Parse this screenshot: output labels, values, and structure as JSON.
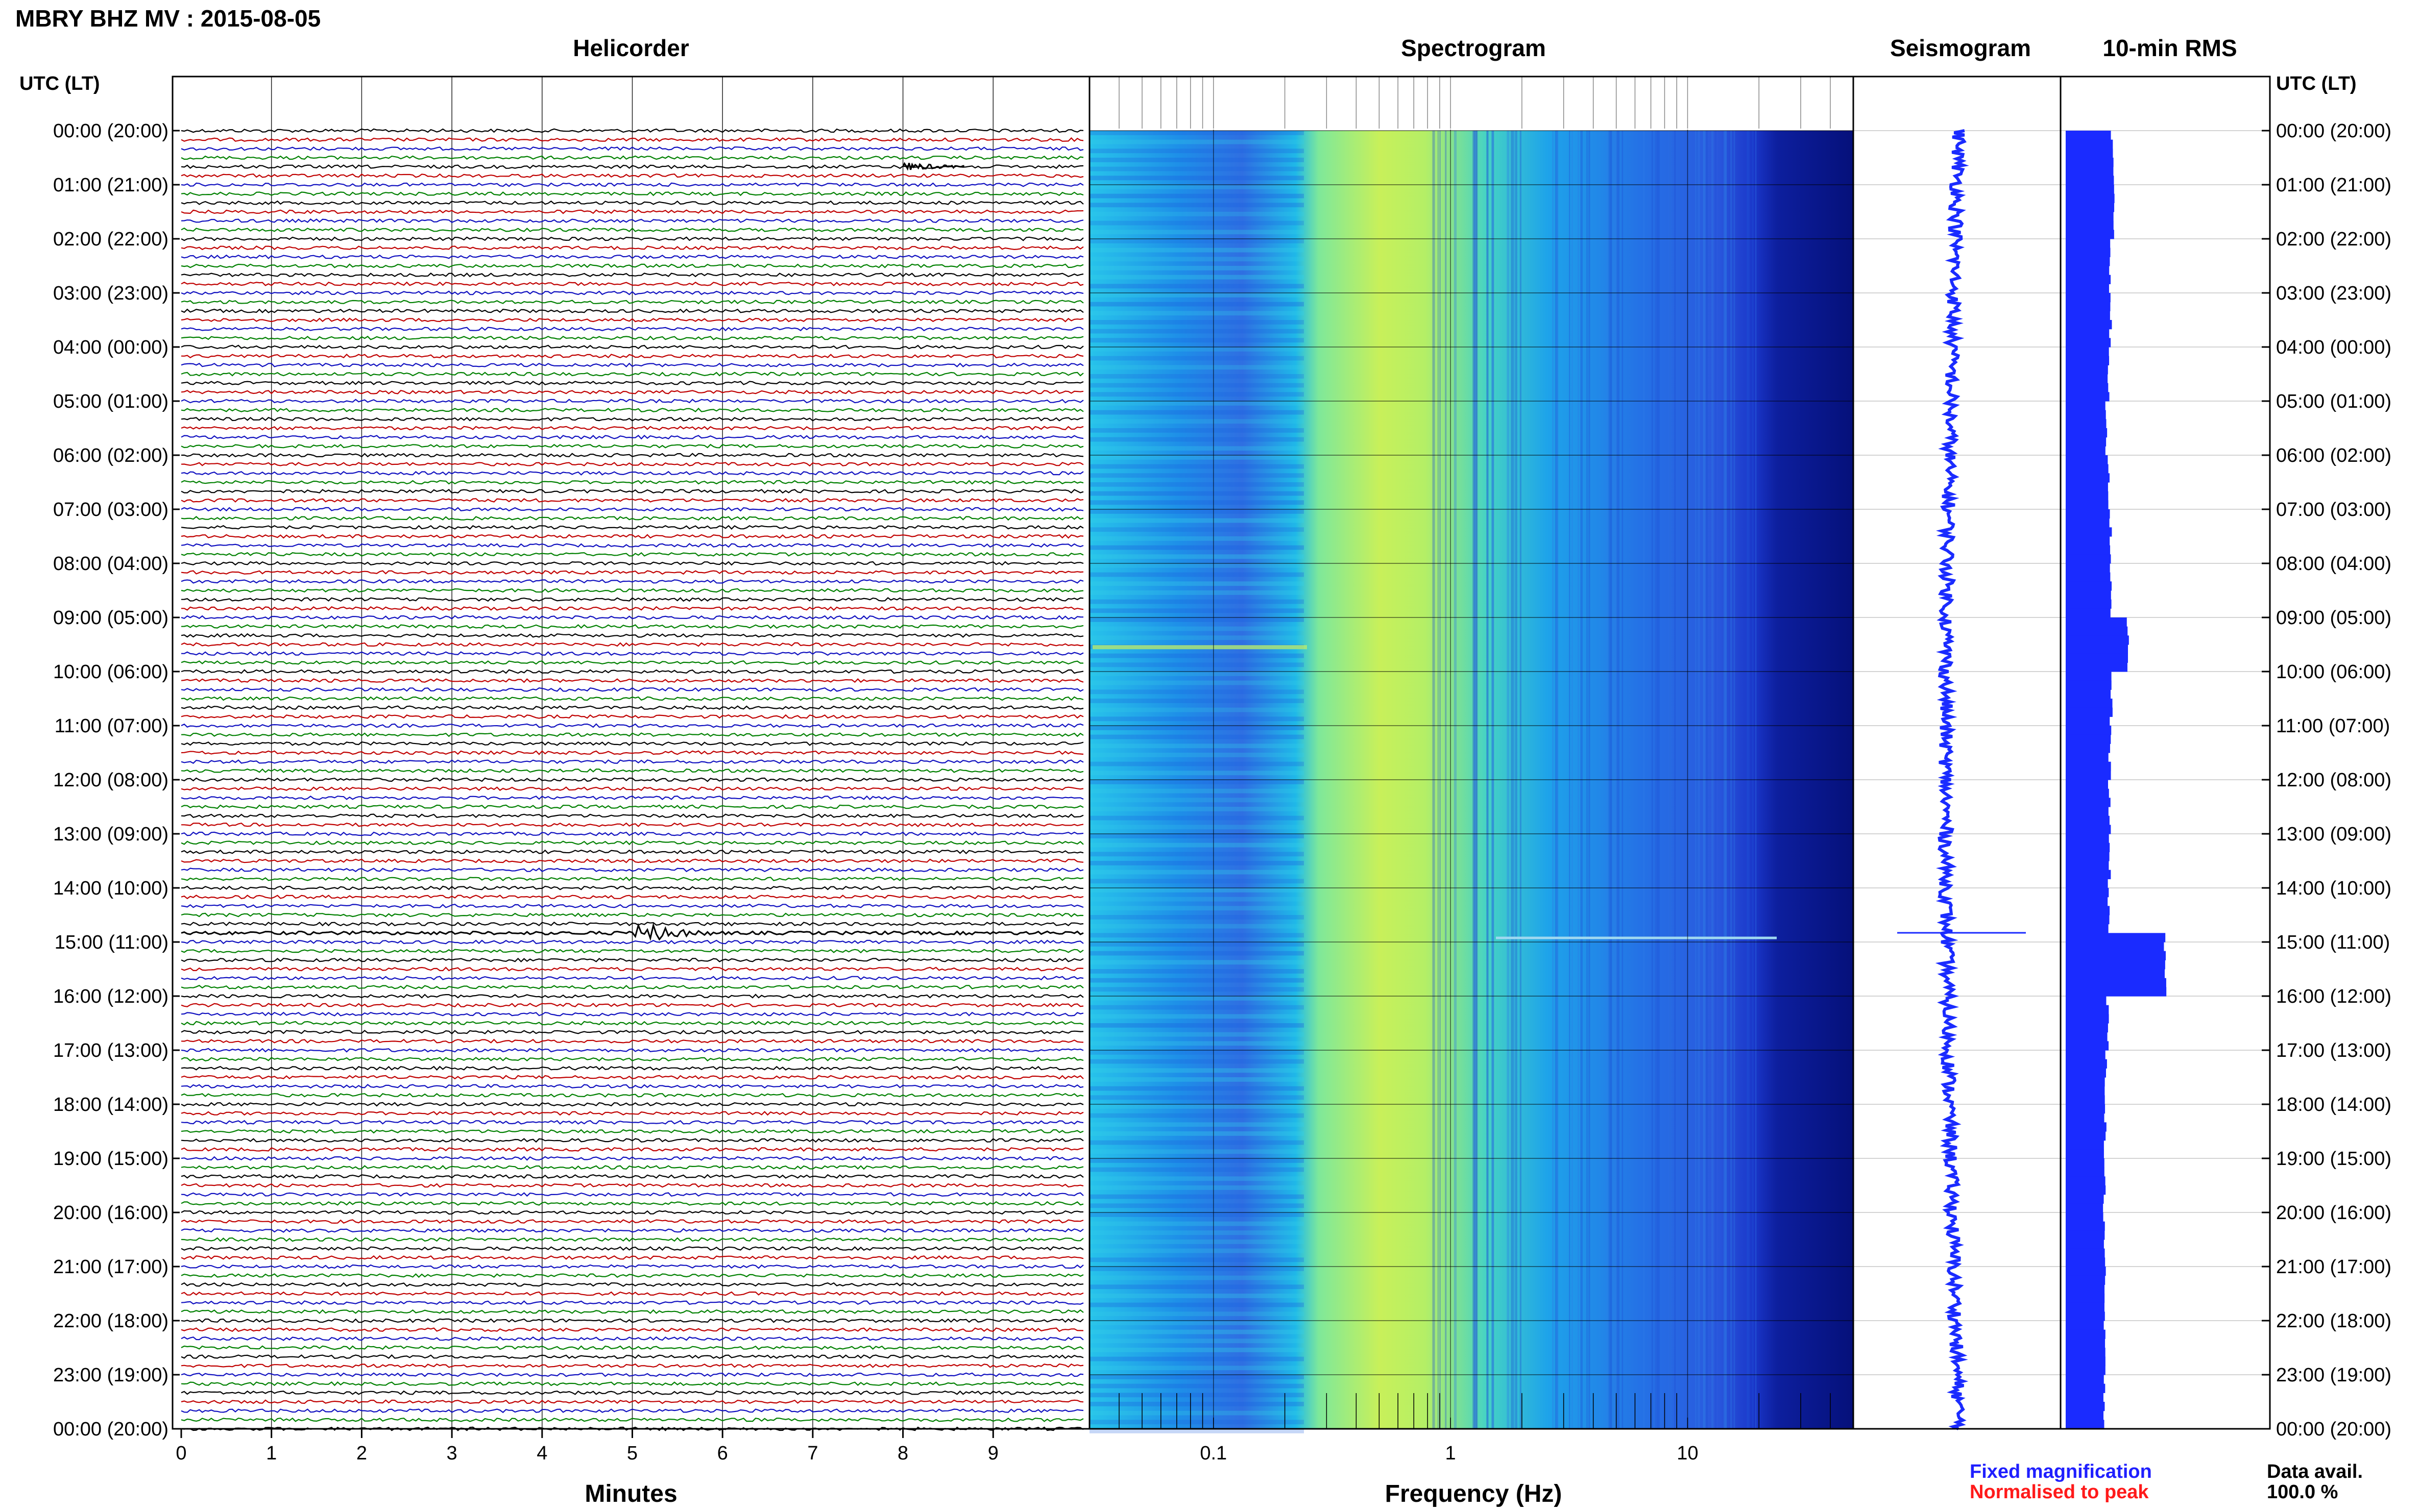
{
  "header": {
    "title": "MBRY BHZ MV : 2015-08-05"
  },
  "panels": {
    "helicorder": "Helicorder",
    "spectrogram": "Spectrogram",
    "seismogram": "Seismogram",
    "rms": "10-min RMS"
  },
  "axes": {
    "left_axis_label": "UTC (LT)",
    "right_axis_label": "UTC (LT)",
    "helicorder_xlabel": "Minutes",
    "spectrogram_xlabel": "Frequency (Hz)"
  },
  "legend": {
    "fixed": "Fixed magnification",
    "normalised": "Normalised to peak",
    "fixed_color": "#1f1fff",
    "normalised_color": "#ff1a1a"
  },
  "data_avail": {
    "label": "Data avail.",
    "value": "100.0 %"
  },
  "colors": {
    "trace_cycle": [
      "#000000",
      "#c00000",
      "#1010c0",
      "#008000"
    ],
    "rms_bar": "#1a2bff",
    "seismogram": "#1a2bff"
  },
  "chart_data": [
    {
      "type": "line",
      "name": "helicorder",
      "xlabel": "Minutes",
      "x_ticks": [
        "0",
        "1",
        "2",
        "3",
        "4",
        "5",
        "6",
        "7",
        "8",
        "9"
      ],
      "xlim": [
        0,
        10
      ],
      "ylabel": "UTC (LT)",
      "row_labels": [
        "00:00 (20:00)",
        "01:00 (21:00)",
        "02:00 (22:00)",
        "03:00 (23:00)",
        "04:00 (00:00)",
        "05:00 (01:00)",
        "06:00 (02:00)",
        "07:00 (03:00)",
        "08:00 (04:00)",
        "09:00 (05:00)",
        "10:00 (06:00)",
        "11:00 (07:00)",
        "12:00 (08:00)",
        "13:00 (09:00)",
        "14:00 (10:00)",
        "15:00 (11:00)",
        "16:00 (12:00)",
        "17:00 (13:00)",
        "18:00 (14:00)",
        "19:00 (15:00)",
        "20:00 (16:00)",
        "21:00 (17:00)",
        "22:00 (18:00)",
        "23:00 (19:00)",
        "00:00 (20:00)"
      ],
      "lines_per_hour": 6,
      "events": [
        {
          "hour": 14.83,
          "minute": 5.0,
          "duration_min": 0.9
        }
      ]
    },
    {
      "type": "heatmap",
      "name": "spectrogram",
      "xlabel": "Frequency (Hz)",
      "x_scale": "log",
      "xlim": [
        0.03,
        50
      ],
      "x_ticks": [
        "0.1",
        "1",
        "10"
      ]
    },
    {
      "type": "line",
      "name": "seismogram"
    },
    {
      "type": "bar",
      "name": "10-min RMS",
      "values_per_hour": [
        0.75,
        0.78,
        0.72,
        0.72,
        0.68,
        0.66,
        0.7,
        0.72,
        0.73,
        1.0,
        0.73,
        0.71,
        0.7,
        0.7,
        0.69,
        1.6,
        0.67,
        0.65,
        0.63,
        0.62,
        0.62,
        0.62,
        0.62,
        0.63,
        0.62
      ]
    }
  ]
}
